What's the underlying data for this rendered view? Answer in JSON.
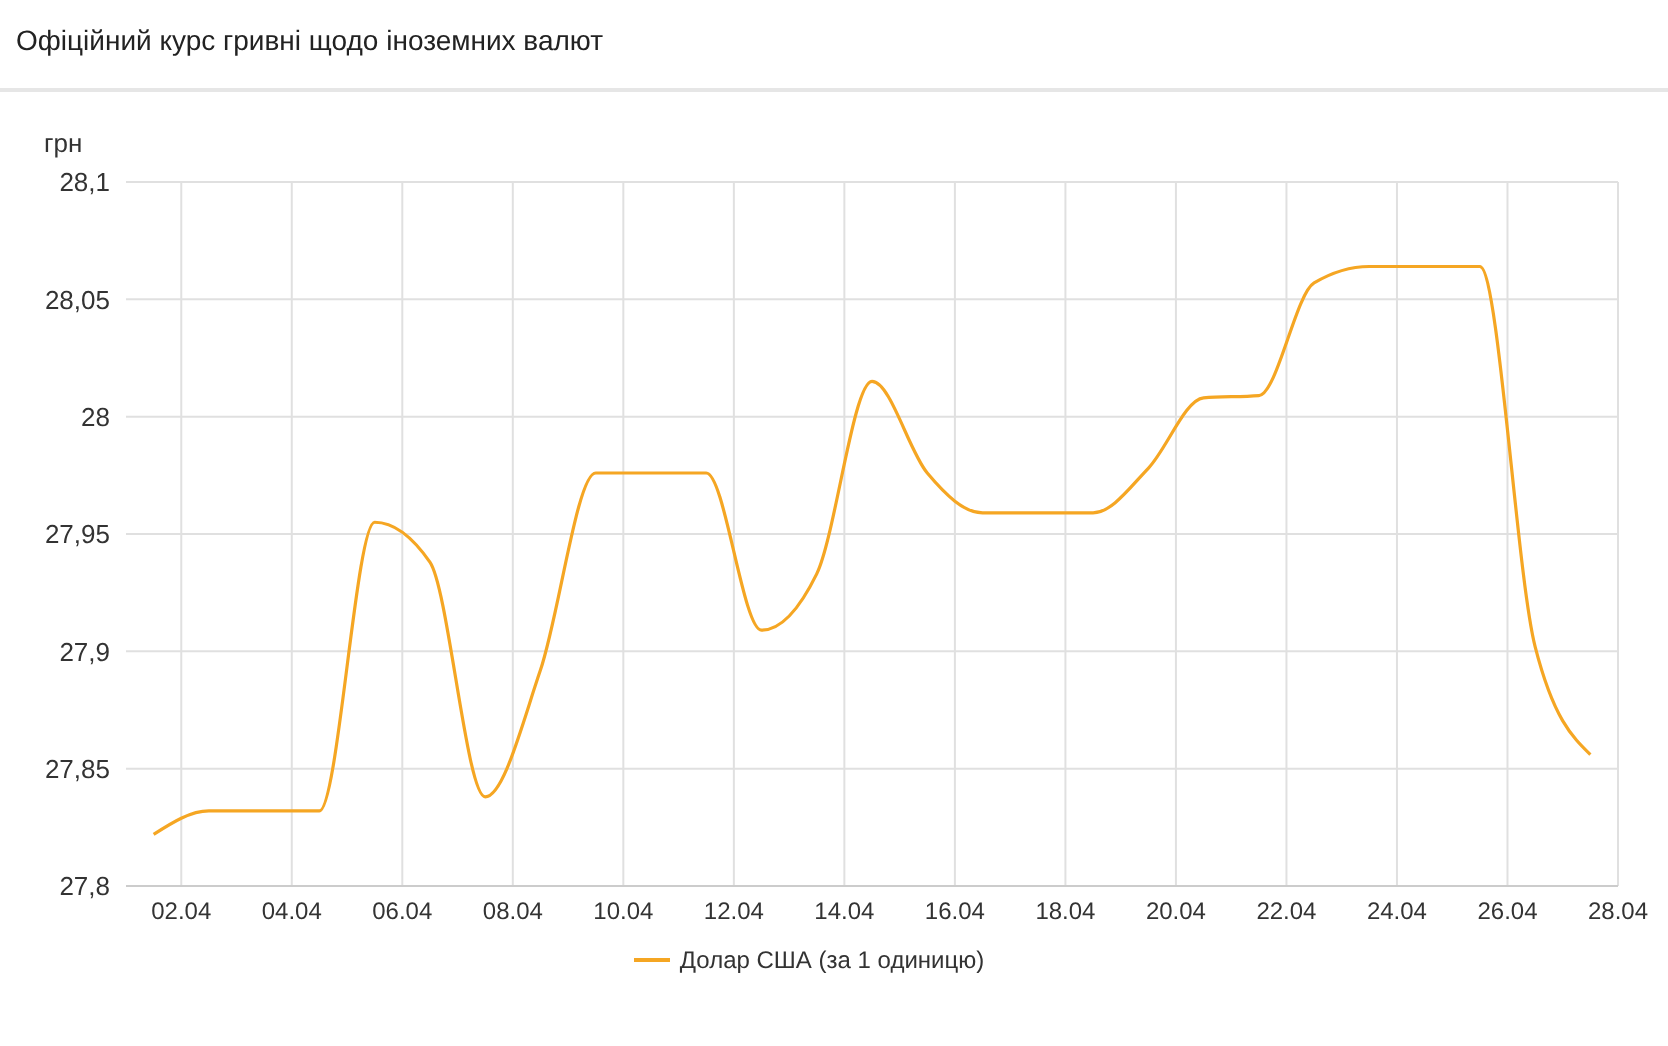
{
  "chart_data": {
    "type": "line",
    "title": "Офіційний курс гривні щодо іноземних валют",
    "ylabel": "грн",
    "x": [
      "--04-01T12:00",
      "--04-02T12:00",
      "--04-03T12:00",
      "--04-04T12:00",
      "--04-05T12:00",
      "--04-06T12:00",
      "--04-07T12:00",
      "--04-08T12:00",
      "--04-09T12:00",
      "--04-10T12:00",
      "--04-11T12:00",
      "--04-12T12:00",
      "--04-13T12:00",
      "--04-14T12:00",
      "--04-15T12:00",
      "--04-16T12:00",
      "--04-17T12:00",
      "--04-18T12:00",
      "--04-19T12:00",
      "--04-20T12:00",
      "--04-21T12:00",
      "--04-22T12:00",
      "--04-23T12:00",
      "--04-24T12:00",
      "--04-25T12:00",
      "--04-26T12:00",
      "--04-27T12:00"
    ],
    "series": [
      {
        "name": "Долар США (за 1 одиницю)",
        "color": "#f5a623",
        "values": [
          27.822,
          27.832,
          27.832,
          27.832,
          27.955,
          27.938,
          27.838,
          27.892,
          27.976,
          27.976,
          27.976,
          27.909,
          27.933,
          28.015,
          27.976,
          27.959,
          27.959,
          27.959,
          27.978,
          28.008,
          28.009,
          28.057,
          28.064,
          28.064,
          28.064,
          27.902,
          27.856
        ]
      }
    ],
    "xlim": [
      "--04-01",
      "--04-28"
    ],
    "xticks": [
      {
        "value": "--04-02",
        "label": "02.04"
      },
      {
        "value": "--04-04",
        "label": "04.04"
      },
      {
        "value": "--04-06",
        "label": "06.04"
      },
      {
        "value": "--04-08",
        "label": "08.04"
      },
      {
        "value": "--04-10",
        "label": "10.04"
      },
      {
        "value": "--04-12",
        "label": "12.04"
      },
      {
        "value": "--04-14",
        "label": "14.04"
      },
      {
        "value": "--04-16",
        "label": "16.04"
      },
      {
        "value": "--04-18",
        "label": "18.04"
      },
      {
        "value": "--04-20",
        "label": "20.04"
      },
      {
        "value": "--04-22",
        "label": "22.04"
      },
      {
        "value": "--04-24",
        "label": "24.04"
      },
      {
        "value": "--04-26",
        "label": "26.04"
      },
      {
        "value": "--04-28",
        "label": "28.04"
      }
    ],
    "ylim": [
      27.8,
      28.1
    ],
    "yticks": [
      {
        "value": 27.8,
        "label": "27,8"
      },
      {
        "value": 27.85,
        "label": "27,85"
      },
      {
        "value": 27.9,
        "label": "27,9"
      },
      {
        "value": 27.95,
        "label": "27,95"
      },
      {
        "value": 28,
        "label": "28"
      },
      {
        "value": 28.05,
        "label": "28,05"
      },
      {
        "value": 28.1,
        "label": "28,1"
      }
    ],
    "grid": true,
    "legend": "bottom",
    "marker": "none",
    "line_style": "solid"
  }
}
